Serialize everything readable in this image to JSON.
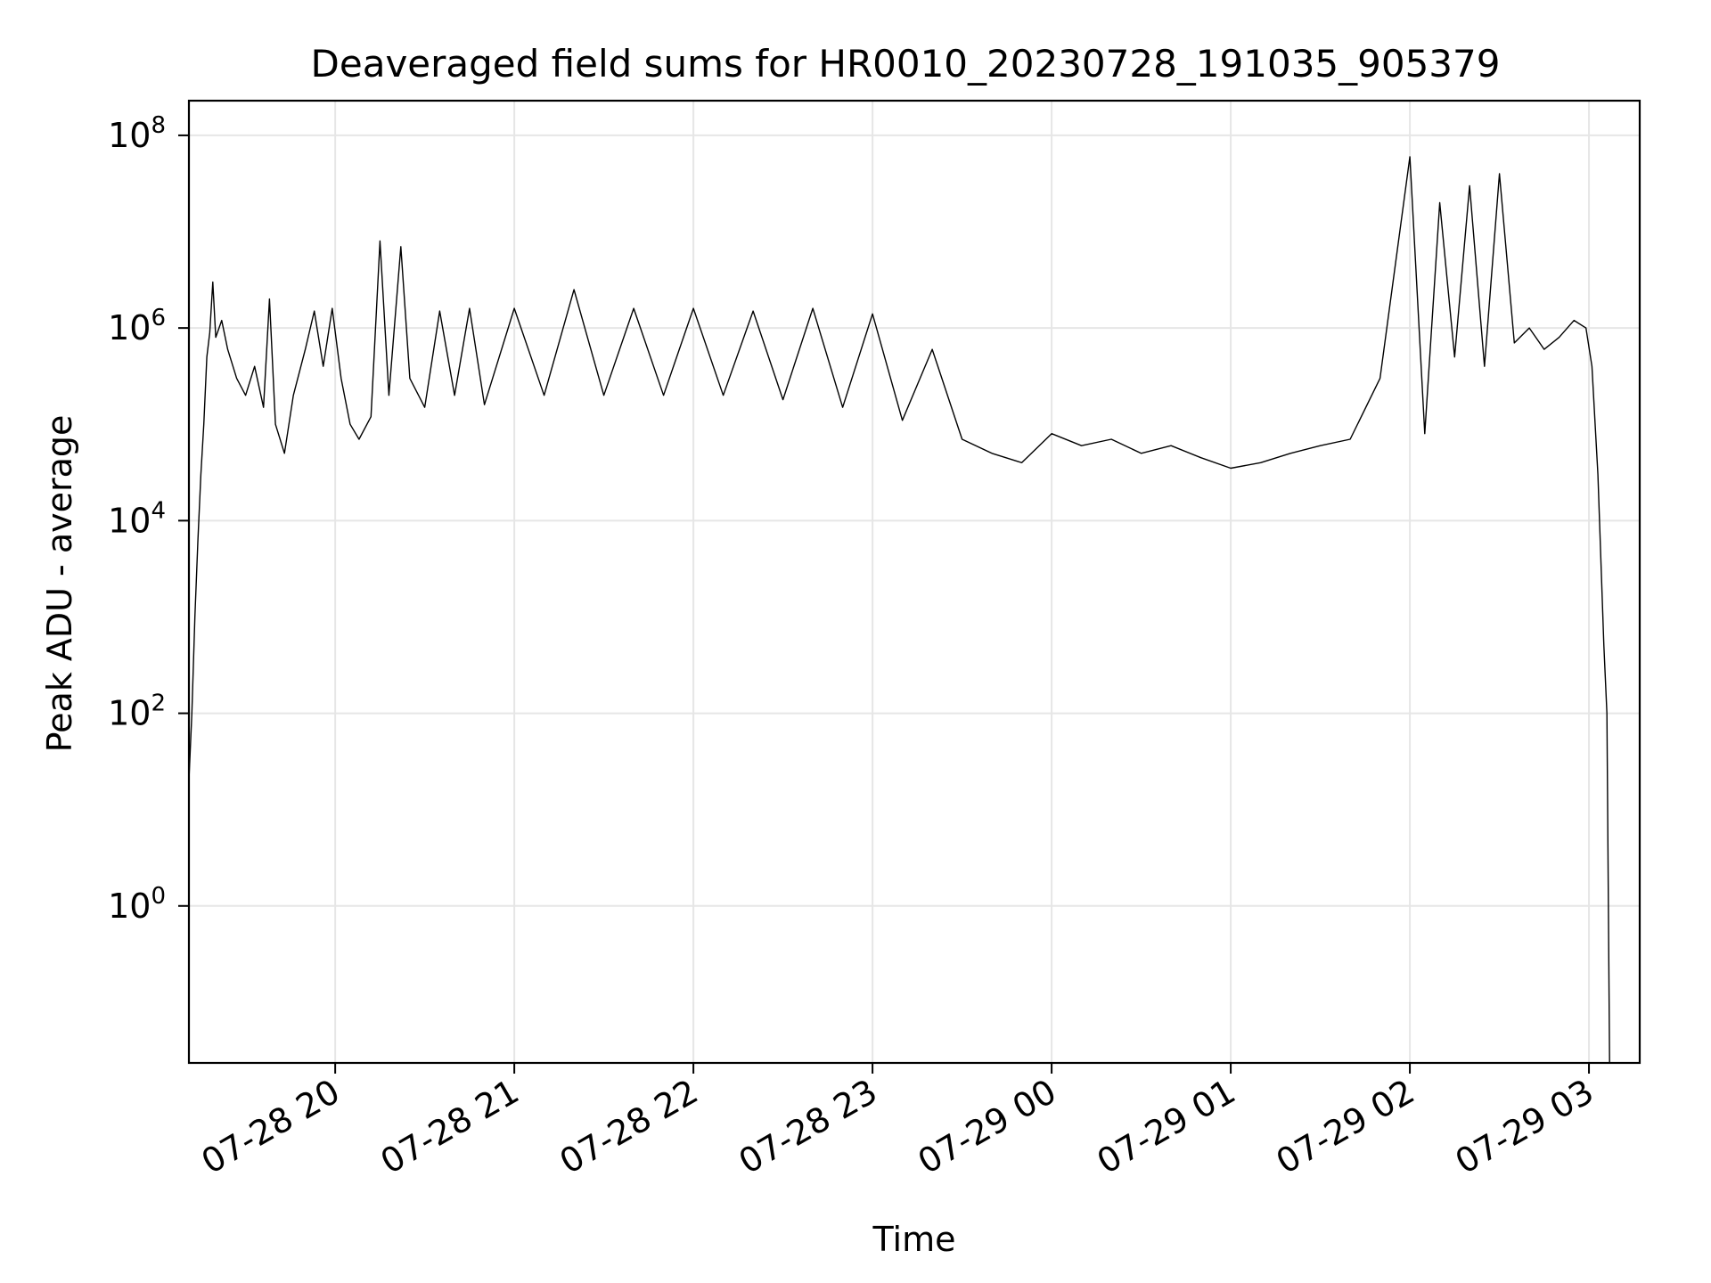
{
  "chart_data": {
    "type": "line",
    "title": "Deaveraged field sums for HR0010_20230728_191035_905379",
    "xlabel": "Time",
    "ylabel": "Peak ADU - average",
    "yscale": "log",
    "grid": true,
    "line_color": "#000000",
    "grid_color": "#e6e6e6",
    "xlim": [
      "2023-07-28 19:11",
      "2023-07-29 03:17"
    ],
    "ylim_exp": [
      -1.63,
      8.36
    ],
    "x_ticks": [
      {
        "time": "2023-07-28 20:00",
        "label": "07-28 20"
      },
      {
        "time": "2023-07-28 21:00",
        "label": "07-28 21"
      },
      {
        "time": "2023-07-28 22:00",
        "label": "07-28 22"
      },
      {
        "time": "2023-07-28 23:00",
        "label": "07-28 23"
      },
      {
        "time": "2023-07-29 00:00",
        "label": "07-29 00"
      },
      {
        "time": "2023-07-29 01:00",
        "label": "07-29 01"
      },
      {
        "time": "2023-07-29 02:00",
        "label": "07-29 02"
      },
      {
        "time": "2023-07-29 03:00",
        "label": "07-29 03"
      }
    ],
    "y_ticks": [
      {
        "exp": 0,
        "base": "10",
        "sup": "0"
      },
      {
        "exp": 2,
        "base": "10",
        "sup": "2"
      },
      {
        "exp": 4,
        "base": "10",
        "sup": "4"
      },
      {
        "exp": 6,
        "base": "10",
        "sup": "6"
      },
      {
        "exp": 8,
        "base": "10",
        "sup": "8"
      }
    ],
    "series": [
      {
        "points": [
          [
            "2023-07-28 19:11",
            0.01
          ],
          [
            "2023-07-28 19:11",
            20.0
          ],
          [
            "2023-07-28 19:12",
            100.0
          ],
          [
            "2023-07-28 19:13",
            1000.0
          ],
          [
            "2023-07-28 19:14",
            6000.0
          ],
          [
            "2023-07-28 19:15",
            30000.0
          ],
          [
            "2023-07-28 19:16",
            100000.0
          ],
          [
            "2023-07-28 19:17",
            500000.0
          ],
          [
            "2023-07-28 19:18",
            900000.0
          ],
          [
            "2023-07-28 19:19",
            3000000.0
          ],
          [
            "2023-07-28 19:20",
            800000.0
          ],
          [
            "2023-07-28 19:22",
            1200000.0
          ],
          [
            "2023-07-28 19:24",
            600000.0
          ],
          [
            "2023-07-28 19:27",
            300000.0
          ],
          [
            "2023-07-28 19:30",
            200000.0
          ],
          [
            "2023-07-28 19:33",
            400000.0
          ],
          [
            "2023-07-28 19:36",
            150000.0
          ],
          [
            "2023-07-28 19:38",
            2000000.0
          ],
          [
            "2023-07-28 19:40",
            100000.0
          ],
          [
            "2023-07-28 19:43",
            50000.0
          ],
          [
            "2023-07-28 19:46",
            200000.0
          ],
          [
            "2023-07-28 19:50",
            600000.0
          ],
          [
            "2023-07-28 19:53",
            1500000.0
          ],
          [
            "2023-07-28 19:56",
            400000.0
          ],
          [
            "2023-07-28 19:59",
            1600000.0
          ],
          [
            "2023-07-28 20:02",
            300000.0
          ],
          [
            "2023-07-28 20:05",
            100000.0
          ],
          [
            "2023-07-28 20:08",
            70000.0
          ],
          [
            "2023-07-28 20:12",
            120000.0
          ],
          [
            "2023-07-28 20:15",
            8000000.0
          ],
          [
            "2023-07-28 20:18",
            200000.0
          ],
          [
            "2023-07-28 20:22",
            7000000.0
          ],
          [
            "2023-07-28 20:25",
            300000.0
          ],
          [
            "2023-07-28 20:30",
            150000.0
          ],
          [
            "2023-07-28 20:35",
            1500000.0
          ],
          [
            "2023-07-28 20:40",
            200000.0
          ],
          [
            "2023-07-28 20:45",
            1600000.0
          ],
          [
            "2023-07-28 20:50",
            160000.0
          ],
          [
            "2023-07-28 21:00",
            1600000.0
          ],
          [
            "2023-07-28 21:10",
            200000.0
          ],
          [
            "2023-07-28 21:20",
            2500000.0
          ],
          [
            "2023-07-28 21:30",
            200000.0
          ],
          [
            "2023-07-28 21:40",
            1600000.0
          ],
          [
            "2023-07-28 21:50",
            200000.0
          ],
          [
            "2023-07-28 22:00",
            1600000.0
          ],
          [
            "2023-07-28 22:10",
            200000.0
          ],
          [
            "2023-07-28 22:20",
            1500000.0
          ],
          [
            "2023-07-28 22:30",
            180000.0
          ],
          [
            "2023-07-28 22:40",
            1600000.0
          ],
          [
            "2023-07-28 22:50",
            150000.0
          ],
          [
            "2023-07-28 23:00",
            1400000.0
          ],
          [
            "2023-07-28 23:10",
            110000.0
          ],
          [
            "2023-07-28 23:20",
            600000.0
          ],
          [
            "2023-07-28 23:30",
            70000.0
          ],
          [
            "2023-07-28 23:40",
            50000.0
          ],
          [
            "2023-07-28 23:50",
            40000.0
          ],
          [
            "2023-07-29 00:00",
            80000.0
          ],
          [
            "2023-07-29 00:10",
            60000.0
          ],
          [
            "2023-07-29 00:20",
            70000.0
          ],
          [
            "2023-07-29 00:30",
            50000.0
          ],
          [
            "2023-07-29 00:40",
            60000.0
          ],
          [
            "2023-07-29 00:50",
            45000.0
          ],
          [
            "2023-07-29 01:00",
            35000.0
          ],
          [
            "2023-07-29 01:10",
            40000.0
          ],
          [
            "2023-07-29 01:20",
            50000.0
          ],
          [
            "2023-07-29 01:30",
            60000.0
          ],
          [
            "2023-07-29 01:40",
            70000.0
          ],
          [
            "2023-07-29 01:50",
            300000.0
          ],
          [
            "2023-07-29 02:00",
            60000000.0
          ],
          [
            "2023-07-29 02:05",
            80000.0
          ],
          [
            "2023-07-29 02:10",
            20000000.0
          ],
          [
            "2023-07-29 02:15",
            500000.0
          ],
          [
            "2023-07-29 02:20",
            30000000.0
          ],
          [
            "2023-07-29 02:25",
            400000.0
          ],
          [
            "2023-07-29 02:30",
            40000000.0
          ],
          [
            "2023-07-29 02:35",
            700000.0
          ],
          [
            "2023-07-29 02:40",
            1000000.0
          ],
          [
            "2023-07-29 02:45",
            600000.0
          ],
          [
            "2023-07-29 02:50",
            800000.0
          ],
          [
            "2023-07-29 02:55",
            1200000.0
          ],
          [
            "2023-07-29 02:59",
            1000000.0
          ],
          [
            "2023-07-29 03:01",
            400000.0
          ],
          [
            "2023-07-29 03:03",
            30000.0
          ],
          [
            "2023-07-29 03:05",
            500.0
          ],
          [
            "2023-07-29 03:06",
            100.0
          ],
          [
            "2023-07-29 03:07",
            0.01
          ]
        ]
      }
    ]
  }
}
